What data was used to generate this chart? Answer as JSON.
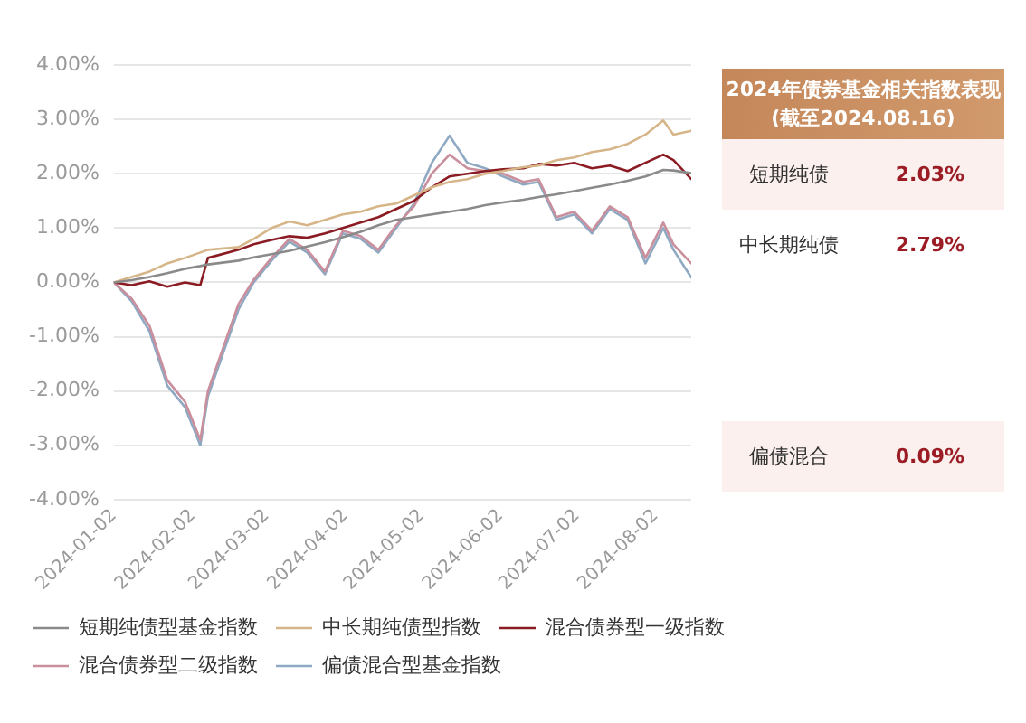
{
  "chart_data": [
    {
      "type": "line",
      "x": [
        "2024-01-02",
        "2024-01-09",
        "2024-01-16",
        "2024-01-23",
        "2024-01-30",
        "2024-02-05",
        "2024-02-08",
        "2024-02-20",
        "2024-02-26",
        "2024-03-04",
        "2024-03-11",
        "2024-03-18",
        "2024-03-25",
        "2024-04-01",
        "2024-04-08",
        "2024-04-15",
        "2024-04-22",
        "2024-04-29",
        "2024-05-06",
        "2024-05-13",
        "2024-05-20",
        "2024-05-27",
        "2024-06-03",
        "2024-06-11",
        "2024-06-17",
        "2024-06-24",
        "2024-07-01",
        "2024-07-08",
        "2024-07-15",
        "2024-07-22",
        "2024-07-29",
        "2024-08-05",
        "2024-08-09",
        "2024-08-16"
      ],
      "series": [
        {
          "name": "短期纯债型基金指数",
          "color": "#8a8a8a",
          "values": [
            0,
            0.04,
            0.1,
            0.17,
            0.25,
            0.3,
            0.33,
            0.4,
            0.46,
            0.52,
            0.58,
            0.66,
            0.74,
            0.83,
            0.93,
            1.05,
            1.15,
            1.2,
            1.25,
            1.3,
            1.35,
            1.42,
            1.47,
            1.52,
            1.57,
            1.62,
            1.68,
            1.74,
            1.8,
            1.87,
            1.95,
            2.07,
            2.06,
            2.01
          ]
        },
        {
          "name": "中长期纯债型指数",
          "color": "#d6b588",
          "values": [
            0,
            0.1,
            0.2,
            0.35,
            0.45,
            0.55,
            0.6,
            0.65,
            0.8,
            1.0,
            1.12,
            1.05,
            1.15,
            1.25,
            1.3,
            1.4,
            1.45,
            1.6,
            1.75,
            1.85,
            1.9,
            2.0,
            2.05,
            2.12,
            2.15,
            2.25,
            2.3,
            2.4,
            2.45,
            2.55,
            2.72,
            2.98,
            2.72,
            2.79
          ]
        },
        {
          "name": "混合债券型一级指数",
          "color": "#8b1c24",
          "values": [
            0,
            -0.05,
            0.02,
            -0.08,
            0,
            -0.05,
            0.45,
            0.6,
            0.7,
            0.78,
            0.85,
            0.82,
            0.9,
            1.0,
            1.1,
            1.2,
            1.35,
            1.5,
            1.75,
            1.95,
            2.0,
            2.05,
            2.08,
            2.1,
            2.18,
            2.15,
            2.2,
            2.1,
            2.15,
            2.05,
            2.2,
            2.35,
            2.25,
            1.9
          ]
        },
        {
          "name": "混合债券型二级指数",
          "color": "#c98f9c",
          "values": [
            0,
            -0.3,
            -0.8,
            -1.8,
            -2.2,
            -2.9,
            -2.0,
            -0.4,
            0.05,
            0.45,
            0.8,
            0.6,
            0.2,
            0.95,
            0.85,
            0.6,
            1.05,
            1.4,
            2.0,
            2.35,
            2.1,
            2.05,
            2.0,
            1.85,
            1.9,
            1.2,
            1.3,
            0.95,
            1.4,
            1.2,
            0.45,
            1.1,
            0.7,
            0.35
          ]
        },
        {
          "name": "偏债混合型基金指数",
          "color": "#8fa9c3",
          "values": [
            0,
            -0.35,
            -0.9,
            -1.9,
            -2.3,
            -3.0,
            -2.1,
            -0.5,
            0,
            0.4,
            0.75,
            0.55,
            0.15,
            0.9,
            0.8,
            0.55,
            1.0,
            1.45,
            2.2,
            2.7,
            2.2,
            2.1,
            1.95,
            1.8,
            1.85,
            1.15,
            1.25,
            0.9,
            1.35,
            1.15,
            0.35,
            1.0,
            0.6,
            0.09
          ]
        }
      ],
      "xlim": [
        "2024-01-02",
        "2024-08-16"
      ],
      "xticks": [
        "2024-01-02",
        "2024-02-02",
        "2024-03-02",
        "2024-04-02",
        "2024-05-02",
        "2024-06-02",
        "2024-07-02",
        "2024-08-02"
      ],
      "ylim": [
        -4,
        4
      ],
      "yticks": [
        {
          "value": -4,
          "label": "-4.00%"
        },
        {
          "value": -3,
          "label": "-3.00%"
        },
        {
          "value": -2,
          "label": "-2.00%"
        },
        {
          "value": -1,
          "label": "-1.00%"
        },
        {
          "value": 0,
          "label": "0.00%"
        },
        {
          "value": 1,
          "label": "1.00%"
        },
        {
          "value": 2,
          "label": "2.00%"
        },
        {
          "value": 3,
          "label": "3.00%"
        },
        {
          "value": 4,
          "label": "4.00%"
        }
      ],
      "grid": "y",
      "legend": "bottom",
      "marker": "none"
    },
    {
      "type": "other",
      "title": "2024年债券基金相关指数表现",
      "subtitle": "(截至2024.08.16)",
      "annotations": [
        "短期纯债",
        "2.03%",
        "中长期纯债",
        "2.79%",
        null,
        null,
        null,
        null,
        "偏债混合",
        "0.09%"
      ]
    }
  ]
}
